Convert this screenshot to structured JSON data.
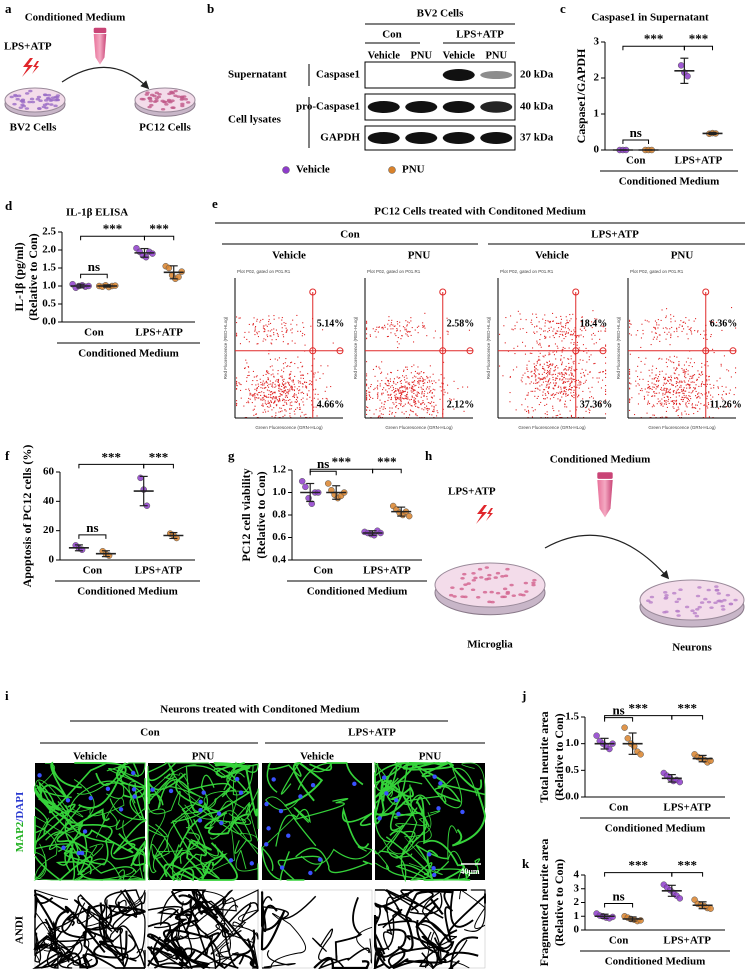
{
  "panels": {
    "a": {
      "letter": "a",
      "medium": "Conditioned Medium",
      "stimulus": "LPS+ATP",
      "source": "BV2 Cells",
      "target": "PC12 Cells"
    },
    "b": {
      "letter": "b",
      "cells": "BV2 Cells",
      "groups": [
        "Con",
        "LPS+ATP"
      ],
      "lanes": [
        "Vehicle",
        "PNU",
        "Vehicle",
        "PNU"
      ],
      "fractions": [
        "Supernatant",
        "Cell lysates"
      ],
      "proteins": [
        "Caspase1",
        "pro-Caspase1",
        "GAPDH"
      ],
      "sizes": [
        "20 kDa",
        "40 kDa",
        "37 kDa"
      ]
    },
    "e": {
      "letter": "e",
      "title": "PC12 Cells treated with Conditoned Medium",
      "groups": [
        "Con",
        "LPS+ATP"
      ],
      "treatments": [
        "Vehicle",
        "PNU",
        "Vehicle",
        "PNU"
      ],
      "plot_header": "Plot P02, gated on P01.R1",
      "y_axis": "Red Fluorescence (RED-HLog)",
      "x_axis": "Green Fluorescence (GRN-HLog)",
      "upper_right": [
        "5.14%",
        "2.58%",
        "18.4%",
        "6.36%"
      ],
      "lower_right": [
        "4.66%",
        "2.12%",
        "37.36%",
        "11.26%"
      ]
    },
    "h": {
      "letter": "h",
      "medium": "Conditioned Medium",
      "stimulus": "LPS+ATP",
      "source": "Microglia",
      "target": "Neurons"
    },
    "i": {
      "letter": "i",
      "title": "Neurons treated with Conditoned Medium",
      "groups": [
        "Con",
        "LPS+ATP"
      ],
      "treatments": [
        "Vehicle",
        "PNU",
        "Vehicle",
        "PNU"
      ],
      "stain_map2": "MAP2",
      "stain_dapi": "/DAPI",
      "scale_bar": "40μm",
      "analysis": "ANDI"
    }
  },
  "chart_data": [
    {
      "type": "dot",
      "letter": "c",
      "title": "Caspase1 in Supernatant",
      "y_label": [
        "Caspase1/GAPDH"
      ],
      "categories": [
        "Con",
        "LPS+ATP"
      ],
      "x_label": "Conditioned Medium",
      "ylim": [
        0,
        3
      ],
      "yticks": [
        0,
        1,
        2,
        3
      ],
      "significance": [
        "ns",
        "***",
        "***"
      ],
      "series": [
        {
          "name": "Vehicle",
          "color": "#8e3ccb",
          "values": [
            0,
            2.2
          ],
          "errors": [
            0,
            0.35
          ],
          "points": [
            [
              0,
              0,
              0
            ],
            [
              2.35,
              2.15,
              2.05
            ]
          ]
        },
        {
          "name": "PNU",
          "color": "#d9822b",
          "values": [
            0,
            0.46
          ],
          "errors": [
            0,
            0.03
          ],
          "points": [
            [
              0,
              0,
              0
            ],
            [
              0.45,
              0.47,
              0.46
            ]
          ]
        }
      ]
    },
    {
      "type": "dot",
      "letter": "d",
      "title": "IL-1β ELISA",
      "y_label": [
        "IL-1β (pg/ml)",
        "(Relative to Con)"
      ],
      "categories": [
        "Con",
        "LPS+ATP"
      ],
      "x_label": "Conditioned Medium",
      "ylim": [
        0,
        2.5
      ],
      "yticks": [
        {
          "value": 0,
          "label": "0.0"
        },
        0.5,
        {
          "value": 1,
          "label": "1.0"
        },
        1.5,
        {
          "value": 2,
          "label": "2.0"
        },
        2.5
      ],
      "significance": [
        "ns",
        "***",
        "***"
      ],
      "series": [
        {
          "name": "Vehicle",
          "color": "#8e3ccb",
          "values": [
            1.0,
            1.92
          ],
          "errors": [
            0.05,
            0.12
          ],
          "points": [
            [
              1.05,
              0.95,
              1.0,
              1.02,
              0.98,
              1.0
            ],
            [
              2.05,
              1.95,
              1.85,
              1.8,
              1.95,
              1.9
            ]
          ]
        },
        {
          "name": "PNU",
          "color": "#d9822b",
          "values": [
            1.0,
            1.38
          ],
          "errors": [
            0.03,
            0.18
          ],
          "points": [
            [
              1.0,
              0.98,
              1.02,
              0.97,
              1.0,
              1.01
            ],
            [
              1.55,
              1.5,
              1.3,
              1.2,
              1.25,
              1.4
            ]
          ]
        }
      ]
    },
    {
      "type": "dot",
      "letter": "f",
      "y_label": [
        "Apoptosis of PC12 cells (%)"
      ],
      "categories": [
        "Con",
        "LPS+ATP"
      ],
      "x_label": "Conditioned Medium",
      "ylim": [
        0,
        60
      ],
      "yticks": [
        0,
        20,
        40,
        60
      ],
      "significance": [
        "ns",
        "***",
        "***"
      ],
      "series": [
        {
          "name": "Vehicle",
          "color": "#8e3ccb",
          "values": [
            8.3,
            47
          ],
          "errors": [
            2,
            10
          ],
          "points": [
            [
              10,
              8,
              7
            ],
            [
              56,
              48,
              37
            ]
          ]
        },
        {
          "name": "PNU",
          "color": "#d9822b",
          "values": [
            4.3,
            16.7
          ],
          "errors": [
            2,
            2
          ],
          "points": [
            [
              6,
              4,
              3
            ],
            [
              18,
              17,
              15
            ]
          ]
        }
      ]
    },
    {
      "type": "dot",
      "letter": "g",
      "y_label": [
        "PC12 cell viability",
        "(Relative to Con)"
      ],
      "categories": [
        "Con",
        "LPS+ATP"
      ],
      "x_label": "Conditioned Medium",
      "ylim": [
        0.4,
        1.2
      ],
      "yticks": [
        0.4,
        0.6,
        0.8,
        {
          "value": 1,
          "label": "1.0"
        },
        1.2
      ],
      "significance": [
        "ns",
        "***",
        "***"
      ],
      "series": [
        {
          "name": "Vehicle",
          "color": "#8e3ccb",
          "values": [
            1.0,
            0.64
          ],
          "errors": [
            0.08,
            0.02
          ],
          "points": [
            [
              1.1,
              1.05,
              0.95,
              0.9,
              1.0,
              1.0
            ],
            [
              0.65,
              0.64,
              0.63,
              0.62,
              0.66,
              0.64
            ]
          ]
        },
        {
          "name": "PNU",
          "color": "#d9822b",
          "values": [
            1.0,
            0.83
          ],
          "errors": [
            0.06,
            0.04
          ],
          "points": [
            [
              1.08,
              1.02,
              0.98,
              0.95,
              0.97,
              1.0
            ],
            [
              0.88,
              0.85,
              0.82,
              0.8,
              0.83,
              0.79
            ]
          ]
        }
      ]
    },
    {
      "type": "dot",
      "letter": "j",
      "y_label": [
        "Total neurite area",
        "(Relative to Con)"
      ],
      "categories": [
        "Con",
        "LPS+ATP"
      ],
      "x_label": "Conditioned Medium",
      "ylim": [
        0,
        1.5
      ],
      "yticks": [
        {
          "value": 0,
          "label": "0.0"
        },
        0.5,
        {
          "value": 1,
          "label": "1.0"
        },
        1.5
      ],
      "significance": [
        "ns",
        "***",
        "***"
      ],
      "series": [
        {
          "name": "Vehicle",
          "color": "#8e3ccb",
          "values": [
            1.0,
            0.35
          ],
          "errors": [
            0.1,
            0.07
          ],
          "points": [
            [
              1.15,
              1.05,
              1.0,
              0.95,
              0.9,
              1.0
            ],
            [
              0.45,
              0.4,
              0.35,
              0.3,
              0.32,
              0.28
            ]
          ]
        },
        {
          "name": "PNU",
          "color": "#d9822b",
          "values": [
            1.0,
            0.72
          ],
          "errors": [
            0.2,
            0.06
          ],
          "points": [
            [
              1.3,
              1.1,
              1.0,
              0.95,
              0.85,
              0.8
            ],
            [
              0.8,
              0.75,
              0.72,
              0.7,
              0.65,
              0.68
            ]
          ]
        }
      ]
    },
    {
      "type": "dot",
      "letter": "k",
      "y_label": [
        "Fragmented neurite area",
        "(Relative to Con)"
      ],
      "categories": [
        "Con",
        "LPS+ATP"
      ],
      "x_label": "Conditioned Medium",
      "ylim": [
        0,
        4
      ],
      "yticks": [
        0,
        1,
        2,
        3,
        4
      ],
      "significance": [
        "ns",
        "***",
        "***"
      ],
      "series": [
        {
          "name": "Vehicle",
          "color": "#8e3ccb",
          "values": [
            1.0,
            2.85
          ],
          "errors": [
            0.15,
            0.4
          ],
          "points": [
            [
              1.2,
              1.05,
              1.0,
              0.9,
              0.85,
              0.95
            ],
            [
              3.3,
              3.1,
              2.9,
              2.7,
              2.5,
              2.3
            ]
          ]
        },
        {
          "name": "PNU",
          "color": "#d9822b",
          "values": [
            0.8,
            1.8
          ],
          "errors": [
            0.15,
            0.25
          ],
          "points": [
            [
              1.0,
              0.9,
              0.8,
              0.75,
              0.65,
              0.7
            ],
            [
              2.2,
              1.9,
              1.8,
              1.75,
              1.6,
              1.55
            ]
          ]
        }
      ]
    }
  ]
}
